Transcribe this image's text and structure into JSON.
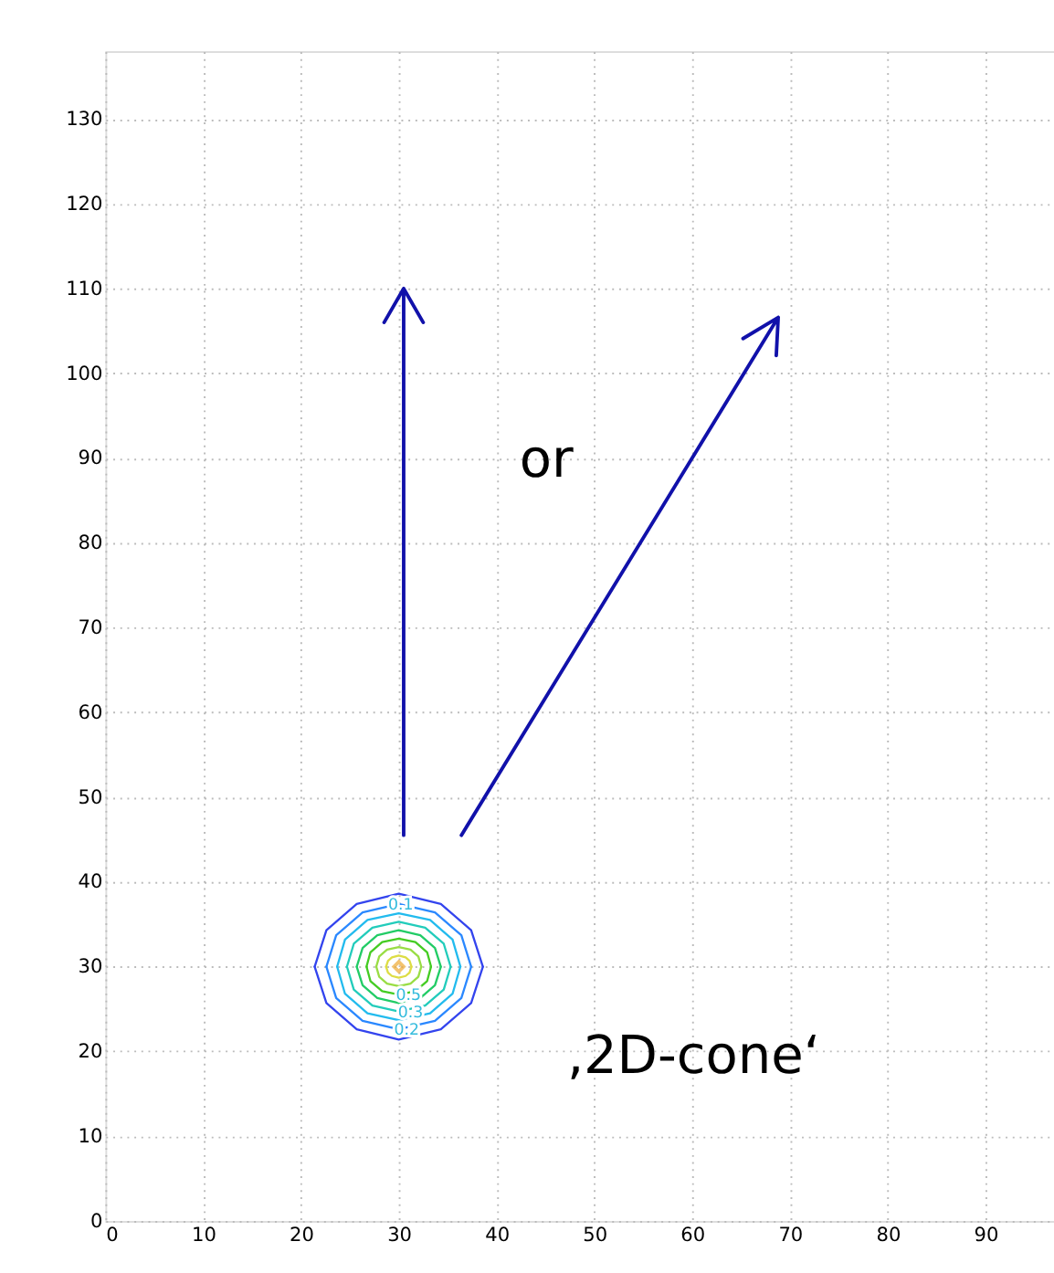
{
  "chart_data": {
    "type": "line",
    "xlim": [
      0,
      97
    ],
    "ylim": [
      0,
      138
    ],
    "xticks": [
      0,
      10,
      20,
      30,
      40,
      50,
      60,
      70,
      80,
      90
    ],
    "yticks": [
      0,
      10,
      20,
      30,
      40,
      50,
      60,
      70,
      80,
      90,
      100,
      110,
      120,
      130
    ],
    "grid": true,
    "marker": "none",
    "line_style": "solid",
    "series": [
      {
        "color": "#3344ee",
        "x": [
          21.4,
          22.6,
          25.7,
          30,
          34.3,
          37.4,
          38.6
        ],
        "values": [
          30,
          34.3,
          37.4,
          38.6,
          37.4,
          34.3,
          30
        ]
      },
      {
        "color": "#3344ee",
        "x": [
          21.4,
          22.6,
          25.7,
          30,
          34.3,
          37.4,
          38.6
        ],
        "values": [
          30,
          25.7,
          22.6,
          21.4,
          22.6,
          25.7,
          30
        ]
      },
      {
        "color": "#2a88ff",
        "x": [
          22.6,
          23.6,
          26.3,
          30,
          33.7,
          36.4,
          37.4
        ],
        "values": [
          30,
          33.7,
          36.4,
          37.4,
          36.4,
          33.7,
          30
        ]
      },
      {
        "color": "#2a88ff",
        "x": [
          22.6,
          23.6,
          26.3,
          30,
          33.7,
          36.4,
          37.4
        ],
        "values": [
          30,
          26.3,
          23.6,
          22.6,
          23.6,
          26.3,
          30
        ]
      },
      {
        "color": "#22bbee",
        "x": [
          23.7,
          24.5,
          26.8,
          30,
          33.2,
          35.5,
          36.3
        ],
        "values": [
          30,
          33.2,
          35.5,
          36.3,
          35.5,
          33.2,
          30
        ]
      },
      {
        "color": "#22bbee",
        "x": [
          23.7,
          24.5,
          26.8,
          30,
          33.2,
          35.5,
          36.3
        ],
        "values": [
          30,
          26.8,
          24.5,
          23.7,
          24.5,
          26.8,
          30
        ]
      },
      {
        "color": "#22ccbb",
        "x": [
          24.7,
          25.4,
          27.3,
          30,
          32.7,
          34.6,
          35.3
        ],
        "values": [
          30,
          32.7,
          34.6,
          35.3,
          34.6,
          32.7,
          30
        ]
      },
      {
        "color": "#22ccbb",
        "x": [
          24.7,
          25.4,
          27.3,
          30,
          32.7,
          34.6,
          35.3
        ],
        "values": [
          30,
          27.3,
          25.4,
          24.7,
          25.4,
          27.3,
          30
        ]
      },
      {
        "color": "#22cc66",
        "x": [
          25.7,
          26.3,
          27.8,
          30,
          32.2,
          33.7,
          34.3
        ],
        "values": [
          30,
          32.2,
          33.7,
          34.3,
          33.7,
          32.2,
          30
        ]
      },
      {
        "color": "#22cc66",
        "x": [
          25.7,
          26.3,
          27.8,
          30,
          32.2,
          33.7,
          34.3
        ],
        "values": [
          30,
          27.8,
          26.3,
          25.7,
          26.3,
          27.8,
          30
        ]
      },
      {
        "color": "#44cc22",
        "x": [
          26.7,
          27.1,
          28.3,
          30,
          31.7,
          32.9,
          33.3
        ],
        "values": [
          30,
          31.7,
          32.9,
          33.3,
          32.9,
          31.7,
          30
        ]
      },
      {
        "color": "#44cc22",
        "x": [
          26.7,
          27.1,
          28.3,
          30,
          31.7,
          32.9,
          33.3
        ],
        "values": [
          30,
          28.3,
          27.1,
          26.7,
          27.1,
          28.3,
          30
        ]
      },
      {
        "color": "#99dd44",
        "x": [
          27.7,
          28,
          28.8,
          30,
          31.2,
          32,
          32.3
        ],
        "values": [
          30,
          31.2,
          32,
          32.3,
          32,
          31.2,
          30
        ]
      },
      {
        "color": "#99dd44",
        "x": [
          27.7,
          28,
          28.8,
          30,
          31.2,
          32,
          32.3
        ],
        "values": [
          30,
          28.8,
          28,
          27.7,
          28,
          28.8,
          30
        ]
      },
      {
        "color": "#dddd44",
        "x": [
          28.7,
          28.9,
          29.3,
          30,
          30.7,
          31.1,
          31.3
        ],
        "values": [
          30,
          30.7,
          31.1,
          31.3,
          31.1,
          30.7,
          30
        ]
      },
      {
        "color": "#dddd44",
        "x": [
          28.7,
          28.9,
          29.3,
          30,
          30.7,
          31.1,
          31.3
        ],
        "values": [
          30,
          29.3,
          28.9,
          28.7,
          28.9,
          29.3,
          30
        ]
      },
      {
        "type": "scatter",
        "marker": "diamond",
        "color": "#eeaa33",
        "x": [
          30
        ],
        "values": [
          30
        ]
      },
      {
        "color": "#1111aa",
        "x": [
          30.5,
          30.5,
          28.5,
          30.5,
          32.5
        ],
        "values": [
          45.5,
          110,
          106,
          110,
          106
        ]
      },
      {
        "color": "#1111aa",
        "x": [
          36.4,
          68.8,
          65.2,
          68.8,
          68.6
        ],
        "values": [
          45.5,
          106.6,
          104.1,
          106.6,
          102.1
        ]
      }
    ],
    "annotations": [
      "or",
      "‚2D-cone‘",
      {
        "text": "0.1",
        "x": 30.2,
        "y": 37.4
      },
      {
        "text": "0.5",
        "x": 31,
        "y": 26.7
      },
      {
        "text": "0.3",
        "x": 31.2,
        "y": 24.7
      },
      {
        "text": "0.2",
        "x": 30.8,
        "y": 22.6
      }
    ]
  }
}
